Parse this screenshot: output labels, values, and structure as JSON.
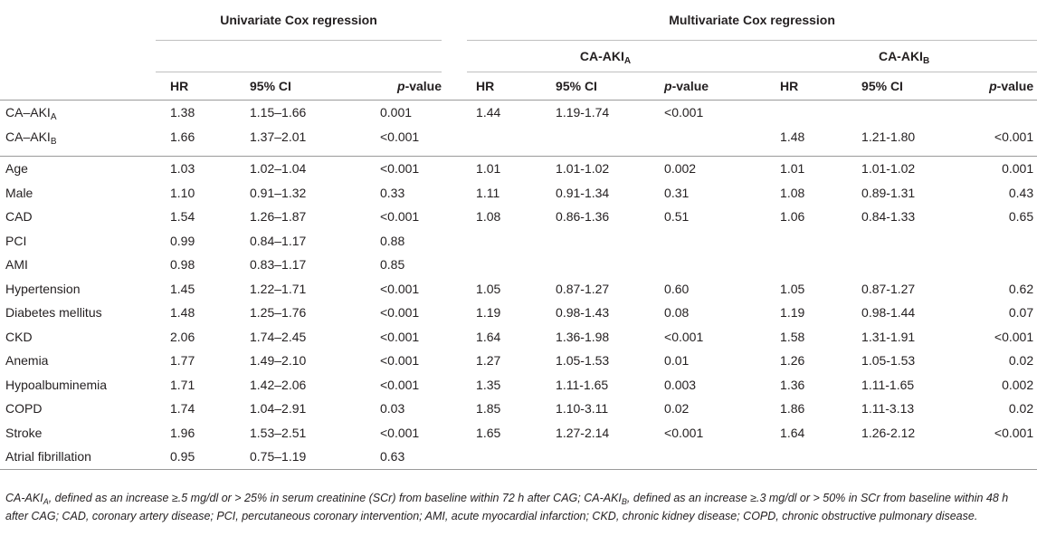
{
  "header": {
    "univariate_title": "Univariate Cox regression",
    "multivariate_title": "Multivariate Cox regression",
    "group_a_main": "CA-AKI",
    "group_a_sub": "A",
    "group_b_main": "CA-AKI",
    "group_b_sub": "B",
    "col_hr": "HR",
    "col_ci": "95% CI",
    "col_p_italic": "p",
    "col_p_rest": "-value"
  },
  "rows_group1": [
    {
      "label_main": "CA–AKI",
      "label_sub": "A",
      "u_hr": "1.38",
      "u_ci": "1.15–1.66",
      "u_p": "0.001",
      "a_hr": "1.44",
      "a_ci": "1.19-1.74",
      "a_p": "<0.001",
      "b_hr": "",
      "b_ci": "",
      "b_p": ""
    },
    {
      "label_main": "CA–AKI",
      "label_sub": "B",
      "u_hr": "1.66",
      "u_ci": "1.37–2.01",
      "u_p": "<0.001",
      "a_hr": "",
      "a_ci": "",
      "a_p": "",
      "b_hr": "1.48",
      "b_ci": "1.21-1.80",
      "b_p": "<0.001"
    }
  ],
  "rows_group2": [
    {
      "label": "Age",
      "u_hr": "1.03",
      "u_ci": "1.02–1.04",
      "u_p": "<0.001",
      "a_hr": "1.01",
      "a_ci": "1.01-1.02",
      "a_p": "0.002",
      "b_hr": "1.01",
      "b_ci": "1.01-1.02",
      "b_p": "0.001"
    },
    {
      "label": "Male",
      "u_hr": "1.10",
      "u_ci": "0.91–1.32",
      "u_p": "0.33",
      "a_hr": "1.11",
      "a_ci": "0.91-1.34",
      "a_p": "0.31",
      "b_hr": "1.08",
      "b_ci": "0.89-1.31",
      "b_p": "0.43"
    },
    {
      "label": "CAD",
      "u_hr": "1.54",
      "u_ci": "1.26–1.87",
      "u_p": "<0.001",
      "a_hr": "1.08",
      "a_ci": "0.86-1.36",
      "a_p": "0.51",
      "b_hr": "1.06",
      "b_ci": "0.84-1.33",
      "b_p": "0.65"
    },
    {
      "label": "PCI",
      "u_hr": "0.99",
      "u_ci": "0.84–1.17",
      "u_p": "0.88",
      "a_hr": "",
      "a_ci": "",
      "a_p": "",
      "b_hr": "",
      "b_ci": "",
      "b_p": ""
    },
    {
      "label": "AMI",
      "u_hr": "0.98",
      "u_ci": "0.83–1.17",
      "u_p": "0.85",
      "a_hr": "",
      "a_ci": "",
      "a_p": "",
      "b_hr": "",
      "b_ci": "",
      "b_p": ""
    },
    {
      "label": "Hypertension",
      "u_hr": "1.45",
      "u_ci": "1.22–1.71",
      "u_p": "<0.001",
      "a_hr": "1.05",
      "a_ci": "0.87-1.27",
      "a_p": "0.60",
      "b_hr": "1.05",
      "b_ci": "0.87-1.27",
      "b_p": "0.62"
    },
    {
      "label": "Diabetes mellitus",
      "u_hr": "1.48",
      "u_ci": "1.25–1.76",
      "u_p": "<0.001",
      "a_hr": "1.19",
      "a_ci": "0.98-1.43",
      "a_p": "0.08",
      "b_hr": "1.19",
      "b_ci": "0.98-1.44",
      "b_p": "0.07"
    },
    {
      "label": "CKD",
      "u_hr": "2.06",
      "u_ci": "1.74–2.45",
      "u_p": "<0.001",
      "a_hr": "1.64",
      "a_ci": "1.36-1.98",
      "a_p": "<0.001",
      "b_hr": "1.58",
      "b_ci": "1.31-1.91",
      "b_p": "<0.001"
    },
    {
      "label": "Anemia",
      "u_hr": "1.77",
      "u_ci": "1.49–2.10",
      "u_p": "<0.001",
      "a_hr": "1.27",
      "a_ci": "1.05-1.53",
      "a_p": "0.01",
      "b_hr": "1.26",
      "b_ci": "1.05-1.53",
      "b_p": "0.02"
    },
    {
      "label": "Hypoalbuminemia",
      "u_hr": "1.71",
      "u_ci": "1.42–2.06",
      "u_p": "<0.001",
      "a_hr": "1.35",
      "a_ci": "1.11-1.65",
      "a_p": "0.003",
      "b_hr": "1.36",
      "b_ci": "1.11-1.65",
      "b_p": "0.002"
    },
    {
      "label": "COPD",
      "u_hr": "1.74",
      "u_ci": "1.04–2.91",
      "u_p": "0.03",
      "a_hr": "1.85",
      "a_ci": "1.10-3.11",
      "a_p": "0.02",
      "b_hr": "1.86",
      "b_ci": "1.11-3.13",
      "b_p": "0.02"
    },
    {
      "label": "Stroke",
      "u_hr": "1.96",
      "u_ci": "1.53–2.51",
      "u_p": "<0.001",
      "a_hr": "1.65",
      "a_ci": "1.27-2.14",
      "a_p": "<0.001",
      "b_hr": "1.64",
      "b_ci": "1.26-2.12",
      "b_p": "<0.001"
    },
    {
      "label": "Atrial fibrillation",
      "u_hr": "0.95",
      "u_ci": "0.75–1.19",
      "u_p": "0.63",
      "a_hr": "",
      "a_ci": "",
      "a_p": "",
      "b_hr": "",
      "b_ci": "",
      "b_p": ""
    }
  ],
  "footnote": {
    "seg1": "CA-AKI",
    "seg1_sub": "A",
    "seg2": ", defined as an increase ≥.5 mg/dl or > 25% in serum creatinine (SCr) from baseline within 72 h after CAG; ",
    "seg3": "CA-AKI",
    "seg3_sub": "B",
    "seg4": ", defined as an increase ≥.3 mg/dl or > 50% in SCr from baseline within 48 h after CAG; CAD, coronary artery disease; PCI, percutaneous coronary intervention; AMI, acute myocardial infarction; CKD, chronic kidney disease; COPD, chronic obstructive pulmonary disease."
  }
}
